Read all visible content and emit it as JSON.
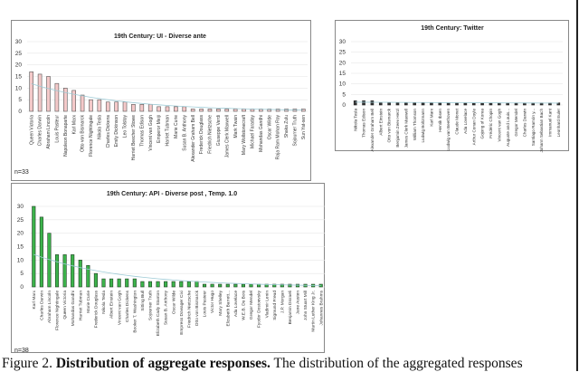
{
  "caption": {
    "label": "Figure 2.",
    "bold": "Distribution of aggregate responses.",
    "text": "The distribution of the aggregated responses"
  },
  "chart_data": [
    {
      "type": "bar",
      "title": "19th Century: UI - Diverse ante",
      "note": "n=33",
      "ylim": [
        0,
        30
      ],
      "yticks": [
        0,
        5,
        10,
        15,
        20,
        25,
        30
      ],
      "grid": true,
      "trendline": true,
      "bar_fill": "#f4c9c9",
      "bar_stroke": "#555555",
      "categories": [
        "Queen Victoria",
        "Charles Darwin",
        "Abraham Lincoln",
        "Louis Pasteur",
        "Napoleon Bonaparte",
        "Karl Marx",
        "Otto von Bismarck",
        "Florence Nightingale",
        "Nikola Tesla",
        "Charles Dickens",
        "Emily Dickinson",
        "Leo Tolstoy",
        "Harriet Beecher Stowe",
        "Thomas Edison",
        "Vincent van Gogh",
        "Emperor Meiji",
        "Harriet Tubman",
        "Marie Curie",
        "Susan B. Anthony",
        "Alexander Graham Bell",
        "Frederick Douglass",
        "Friedrich Nietzsche",
        "Giuseppe Verdi",
        "James Clerk Maxwell",
        "Mark Twain",
        "Mary Wollstonecraft",
        "Michael Faraday",
        "Mohandas Gandhi",
        "Oscar Wilde",
        "Raja Ram Mohan Roy",
        "Shaka Zulu",
        "Sojourner Truth",
        "Sun Yat-sen"
      ],
      "values": [
        17,
        16,
        15,
        12,
        10,
        9,
        7,
        5,
        5,
        4,
        4,
        4,
        3,
        3,
        3,
        2,
        2,
        2,
        2,
        1,
        1,
        1,
        1,
        1,
        1,
        1,
        1,
        1,
        1,
        1,
        1,
        1,
        1
      ]
    },
    {
      "type": "bar",
      "title": "19th Century: Twitter",
      "ylim": [
        0,
        30
      ],
      "yticks": [
        0,
        5,
        10,
        15,
        20,
        25,
        30
      ],
      "grid": true,
      "trendline": true,
      "bar_fill": "#333333",
      "bar_stroke": "#222222",
      "categories": [
        "Nikola Tesla",
        "Thomas Edison",
        "Alexander Graham Bell",
        "Albert Einstein",
        "Otto von Bismarck",
        "Benjamin Zeev Herzl",
        "James Clerk Maxwell",
        "William Thomson",
        "Ludwig Boltzmann",
        "Karl Marx",
        "Henrik Ibsen",
        "Ludwig van Beethoven",
        "Claude Monet",
        "Ada Lovelace",
        "Arthur Conan Doyle",
        "Gojong of Korea",
        "Frédéric Chopin",
        "Vincent van Gogh",
        "Auguste and Louis...",
        "Gregor Mendel",
        "Charles Darwin",
        "Santiago Ramón y...",
        "Johann Sebastian Bach",
        "Immanuel Kant",
        "Leonhard Euler"
      ],
      "values": [
        2,
        2,
        2,
        1,
        1,
        1,
        1,
        1,
        1,
        1,
        1,
        1,
        1,
        1,
        1,
        1,
        1,
        1,
        1,
        1,
        1,
        1,
        1,
        1,
        1
      ]
    },
    {
      "type": "bar",
      "title": "19th Century: API - Diverse post , Temp. 1.0",
      "note": "n=38",
      "ylim": [
        0,
        30
      ],
      "yticks": [
        0,
        5,
        10,
        15,
        20,
        25,
        30
      ],
      "grid": true,
      "trendline": true,
      "bar_fill": "#3cb44b",
      "bar_stroke": "#1e3d22",
      "categories": [
        "Karl Marx",
        "Charles Darwin",
        "Abraham Lincoln",
        "Florence Nightingale",
        "Queen Victoria",
        "Mohandas Gandhi",
        "Harriet Tubman",
        "Marie Curie",
        "Frederick Douglass",
        "Nikola Tesla",
        "Albert Einstein",
        "Vincent van Gogh",
        "Charles Dickens",
        "Booker T. Washington",
        "Sitting Bull",
        "Sojourner Truth",
        "Elizabeth Cady Stanton",
        "Susan B. Anthony",
        "Oscar Wilde",
        "Empress Dowager Cixi",
        "Friedrich Nietzsche",
        "Otto von Bismarck",
        "Louis Pasteur",
        "Victor Hugo",
        "Mary Shelley",
        "Elizabeth Barrett...",
        "Ada Lovelace",
        "W.E.B. Du Bois",
        "Gregor Mendel",
        "Fyodor Dostoevsky",
        "Vladimir Lenin",
        "Sigmund Freud",
        "J.P. Morgan",
        "Benjamin Disraeli",
        "Jane Austen",
        "John Stuart Mill",
        "Martin Luther King Jr.",
        "Johannes Brahms"
      ],
      "values": [
        30,
        26,
        20,
        12,
        12,
        12,
        10,
        8,
        5,
        3,
        3,
        3,
        3,
        3,
        2,
        2,
        2,
        2,
        2,
        2,
        2,
        2,
        1,
        1,
        1,
        1,
        1,
        1,
        1,
        1,
        1,
        1,
        1,
        1,
        1,
        1,
        1,
        1
      ]
    }
  ]
}
